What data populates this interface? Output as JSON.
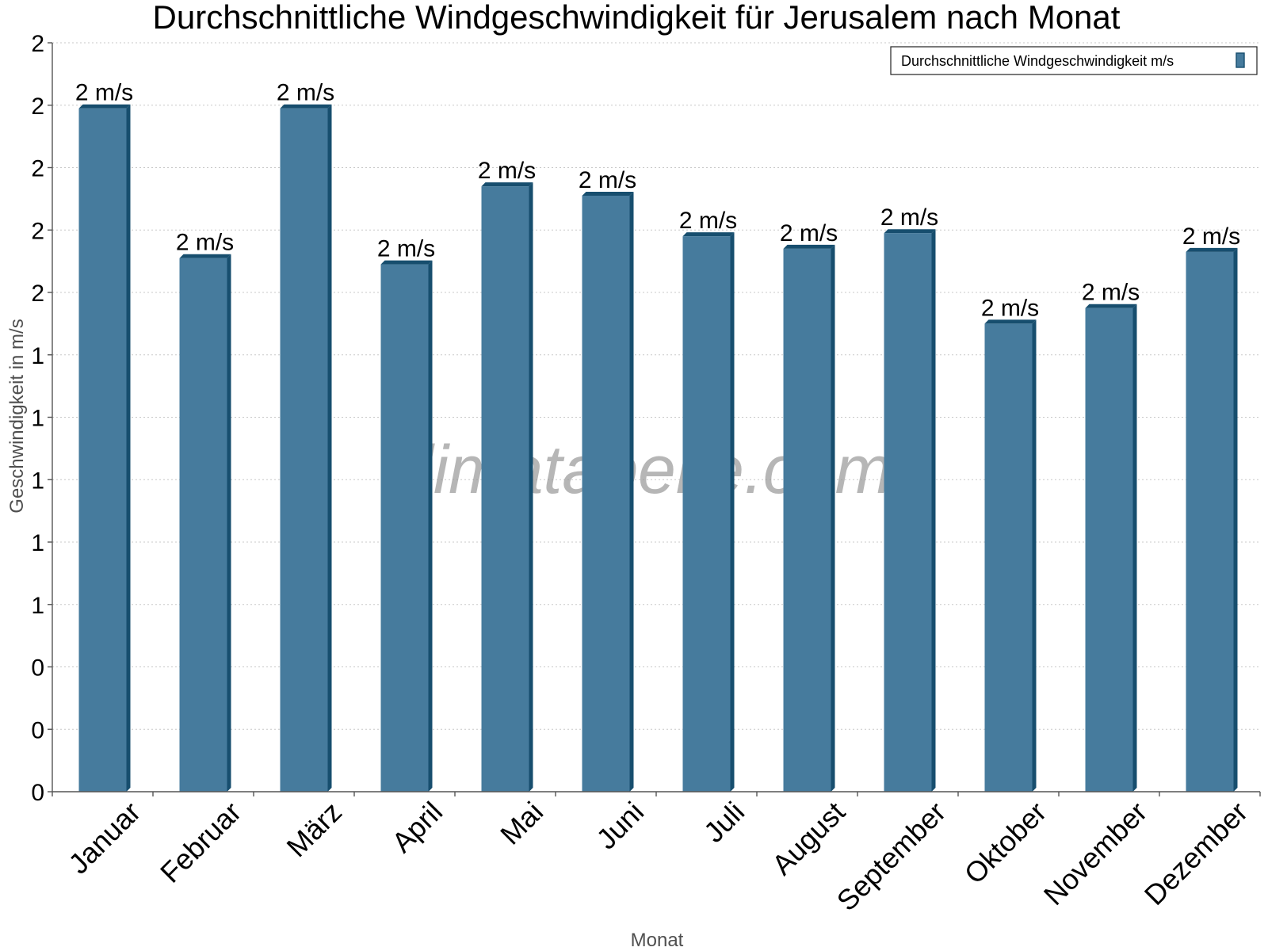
{
  "watermark": "klimatabelle.com",
  "colors": {
    "bar_front": "#467b9d",
    "bar_side": "#174e6e",
    "bar_top": "#174e6e",
    "grid": "#c8c8c8",
    "axis": "#555555"
  },
  "chart_data": {
    "type": "bar",
    "title": "Durchschnittliche Windgeschwindigkeit für Jerusalem nach Monat",
    "xlabel": "Monat",
    "ylabel": "Geschwindigkeit in m/s",
    "categories": [
      "Januar",
      "Februar",
      "März",
      "April",
      "Mai",
      "Juni",
      "Juli",
      "August",
      "September",
      "Oktober",
      "November",
      "Dezember"
    ],
    "series": [
      {
        "name": "Durchschnittliche Windgeschwindigkeit m/s",
        "values": [
          2.19,
          1.71,
          2.19,
          1.69,
          1.94,
          1.91,
          1.78,
          1.74,
          1.79,
          1.5,
          1.55,
          1.73
        ],
        "labels": [
          "2 m/s",
          "2 m/s",
          "2 m/s",
          "2 m/s",
          "2 m/s",
          "2 m/s",
          "2 m/s",
          "2 m/s",
          "2 m/s",
          "2 m/s",
          "2 m/s",
          "2 m/s"
        ]
      }
    ],
    "ylim": [
      0,
      2.4
    ],
    "yticks": [
      0,
      0.2,
      0.4,
      0.6,
      0.8,
      1.0,
      1.2,
      1.4,
      1.6,
      1.8,
      2.0,
      2.2,
      2.4
    ],
    "ytick_labels": [
      "0",
      "0",
      "0",
      "1",
      "1",
      "1",
      "1",
      "1",
      "2",
      "2",
      "2",
      "2",
      "2"
    ],
    "grid": true,
    "legend_position": "top-right"
  }
}
